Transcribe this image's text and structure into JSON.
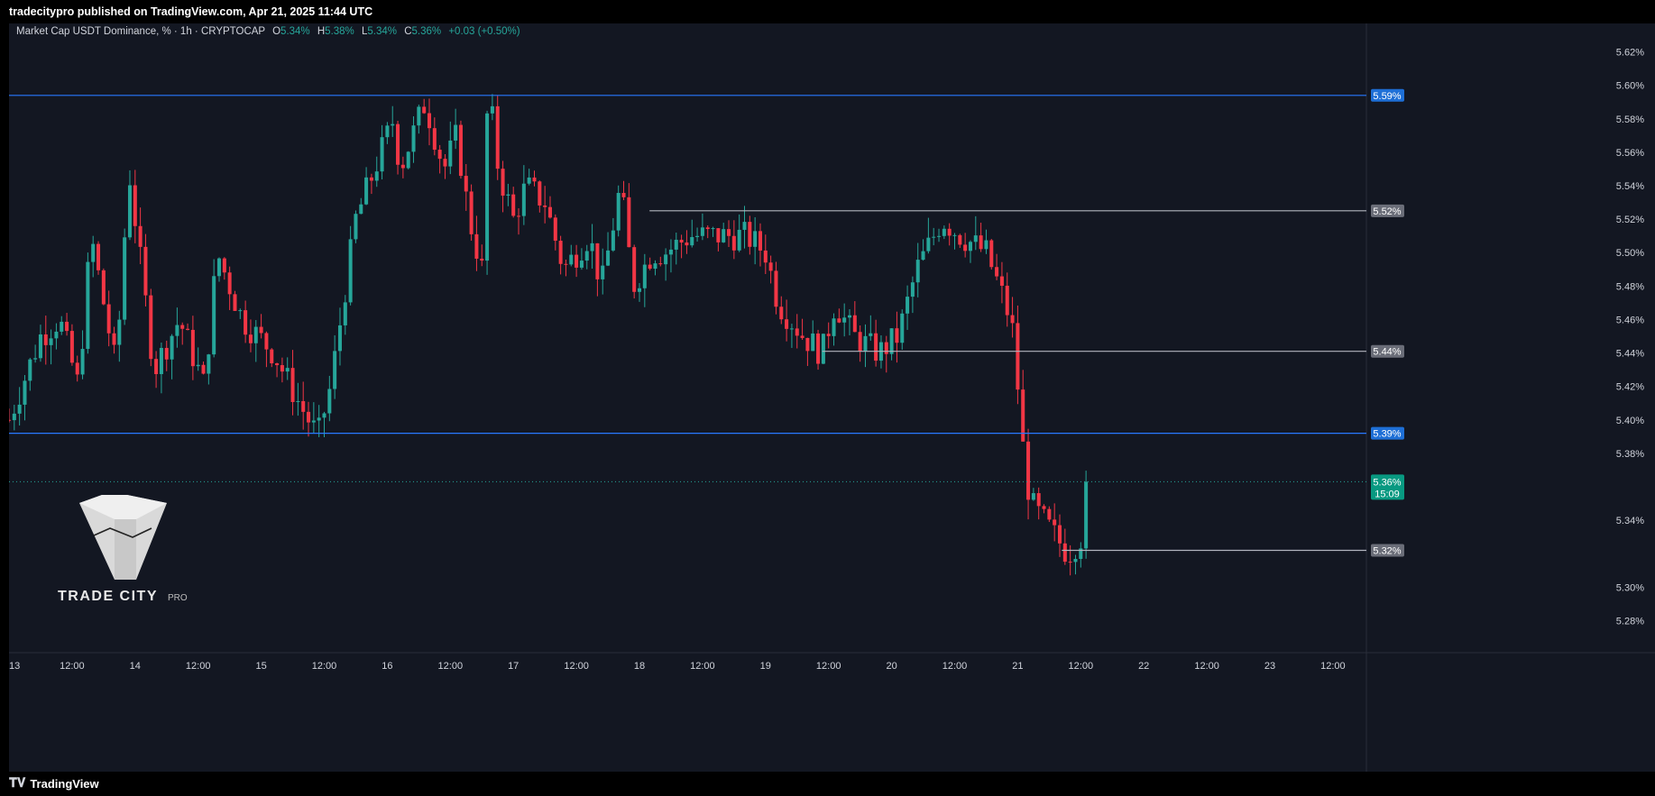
{
  "header": {
    "publisher": "tradecitypro published on TradingView.com, Apr 21, 2025 11:44 UTC"
  },
  "legend": {
    "symbol": "Market Cap USDT Dominance, % · 1h · CRYPTOCAP",
    "o_label": "O",
    "o_value": "5.34%",
    "h_label": "H",
    "h_value": "5.38%",
    "l_label": "L",
    "l_value": "5.34%",
    "c_label": "C",
    "c_value": "5.36%",
    "change": "+0.03 (+0.50%)"
  },
  "footer": {
    "brand": "TradingView",
    "brand_icon": "tradingview-logo-icon"
  },
  "watermark": {
    "text_main": "TRADE CITY",
    "text_sub": "PRO"
  },
  "colors": {
    "background": "#131722",
    "up": "#26a69a",
    "down": "#f23645",
    "blue_level": "#2962ff",
    "gray_level": "#b2b5be",
    "grid": "#1e222d",
    "axis_text": "#d1d4dc"
  },
  "chart_data": {
    "type": "candlestick",
    "title": "Market Cap USDT Dominance, % · 1h · CRYPTOCAP",
    "ylim": [
      5.27,
      5.63
    ],
    "y_ticks": [
      "5.62%",
      "5.60%",
      "5.58%",
      "5.56%",
      "5.54%",
      "5.52%",
      "5.50%",
      "5.48%",
      "5.46%",
      "5.44%",
      "5.42%",
      "5.40%",
      "5.38%",
      "5.34%",
      "5.30%",
      "5.28%"
    ],
    "x_ticks": [
      "13",
      "12:00",
      "14",
      "12:00",
      "15",
      "12:00",
      "16",
      "12:00",
      "17",
      "12:00",
      "18",
      "12:00",
      "19",
      "12:00",
      "20",
      "12:00",
      "21",
      "12:00",
      "22",
      "12:00",
      "23",
      "12:00"
    ],
    "grid": false,
    "levels": [
      {
        "value": 5.594,
        "label": "5.59%",
        "style": "blue",
        "x_start_day": 0.0
      },
      {
        "value": 5.525,
        "label": "5.52%",
        "style": "gray",
        "x_start_day": 5.08
      },
      {
        "value": 5.441,
        "label": "5.44%",
        "style": "gray",
        "x_start_day": 6.45
      },
      {
        "value": 5.392,
        "label": "5.39%",
        "style": "blue",
        "x_start_day": 0.0
      },
      {
        "value": 5.322,
        "label": "5.32%",
        "style": "gray",
        "x_start_day": 8.35
      }
    ],
    "last_price": {
      "value": 5.363,
      "label": "5.36%",
      "countdown": "15:09"
    },
    "series_closes_knots": [
      [
        0.0,
        5.4
      ],
      [
        0.1,
        5.42
      ],
      [
        0.25,
        5.45
      ],
      [
        0.4,
        5.46
      ],
      [
        0.55,
        5.42
      ],
      [
        0.65,
        5.51
      ],
      [
        0.85,
        5.43
      ],
      [
        0.95,
        5.55
      ],
      [
        1.05,
        5.49
      ],
      [
        1.15,
        5.43
      ],
      [
        1.35,
        5.46
      ],
      [
        1.55,
        5.42
      ],
      [
        1.65,
        5.5
      ],
      [
        1.85,
        5.46
      ],
      [
        2.1,
        5.44
      ],
      [
        2.3,
        5.41
      ],
      [
        2.45,
        5.39
      ],
      [
        2.55,
        5.42
      ],
      [
        2.75,
        5.52
      ],
      [
        2.95,
        5.56
      ],
      [
        3.05,
        5.58
      ],
      [
        3.1,
        5.55
      ],
      [
        3.3,
        5.59
      ],
      [
        3.45,
        5.55
      ],
      [
        3.55,
        5.57
      ],
      [
        3.65,
        5.52
      ],
      [
        3.75,
        5.49
      ],
      [
        3.8,
        5.6
      ],
      [
        3.88,
        5.55
      ],
      [
        4.0,
        5.52
      ],
      [
        4.1,
        5.54
      ],
      [
        4.25,
        5.53
      ],
      [
        4.4,
        5.49
      ],
      [
        4.6,
        5.51
      ],
      [
        4.7,
        5.48
      ],
      [
        4.85,
        5.54
      ],
      [
        4.95,
        5.48
      ],
      [
        5.1,
        5.5
      ],
      [
        5.2,
        5.5
      ],
      [
        5.4,
        5.51
      ],
      [
        5.55,
        5.51
      ],
      [
        5.7,
        5.51
      ],
      [
        5.85,
        5.51
      ],
      [
        6.0,
        5.5
      ],
      [
        6.1,
        5.47
      ],
      [
        6.3,
        5.45
      ],
      [
        6.45,
        5.44
      ],
      [
        6.55,
        5.47
      ],
      [
        6.7,
        5.45
      ],
      [
        6.9,
        5.44
      ],
      [
        7.05,
        5.45
      ],
      [
        7.2,
        5.49
      ],
      [
        7.4,
        5.52
      ],
      [
        7.55,
        5.51
      ],
      [
        7.75,
        5.5
      ],
      [
        7.9,
        5.47
      ],
      [
        7.97,
        5.45
      ],
      [
        8.03,
        5.39
      ],
      [
        8.1,
        5.35
      ],
      [
        8.2,
        5.34
      ],
      [
        8.3,
        5.33
      ],
      [
        8.4,
        5.32
      ],
      [
        8.5,
        5.33
      ],
      [
        8.56,
        5.36
      ]
    ],
    "series_notes": "Hourly candles from 13 Apr to 21 Apr 12:00; closes above are approximate read-offs."
  }
}
